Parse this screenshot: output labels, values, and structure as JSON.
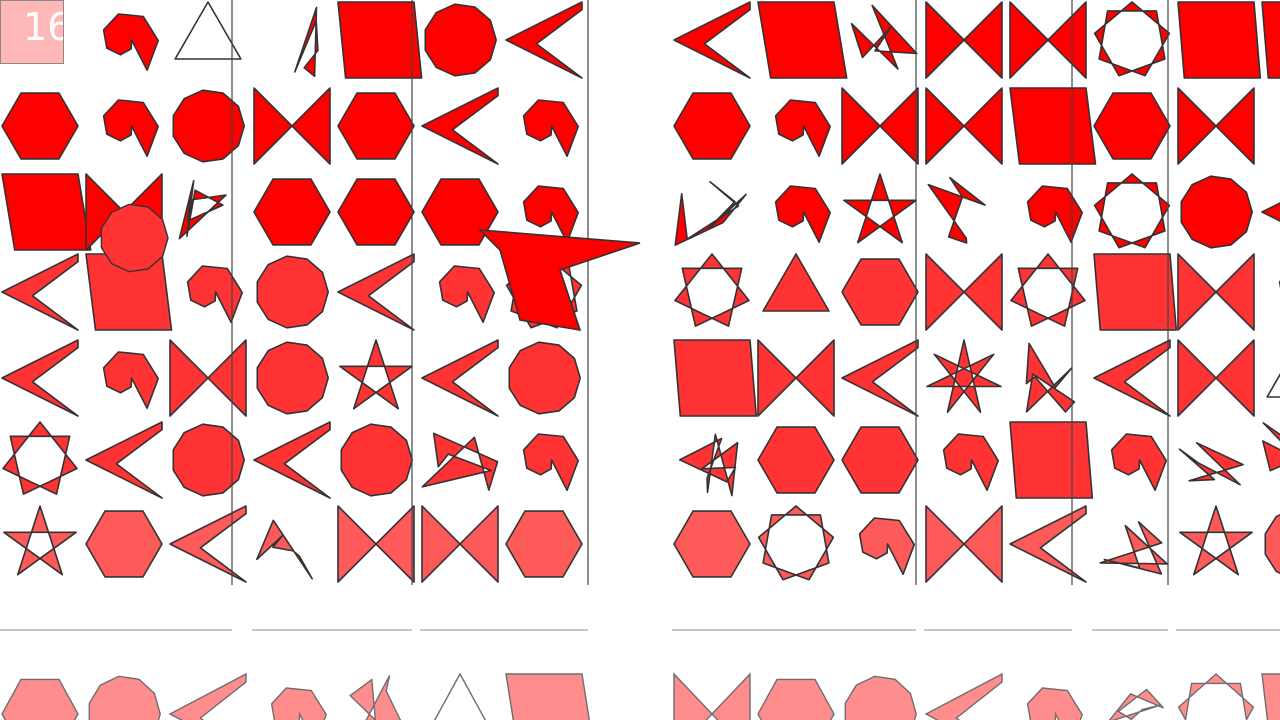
{
  "counter": {
    "value": "16"
  },
  "colors": {
    "primary_fill": "#ff0000",
    "lighter_fill": "#ff3333",
    "light_fill": "#ff5a5a",
    "faded_fill": "#ff7a7a",
    "stroke": "#333333",
    "counter_bg": "#ff8c8c"
  },
  "shapes": {
    "kinds": [
      "star",
      "zigzag",
      "bowtie",
      "hexagon",
      "circle",
      "chevron",
      "spiral",
      "crossing"
    ]
  }
}
